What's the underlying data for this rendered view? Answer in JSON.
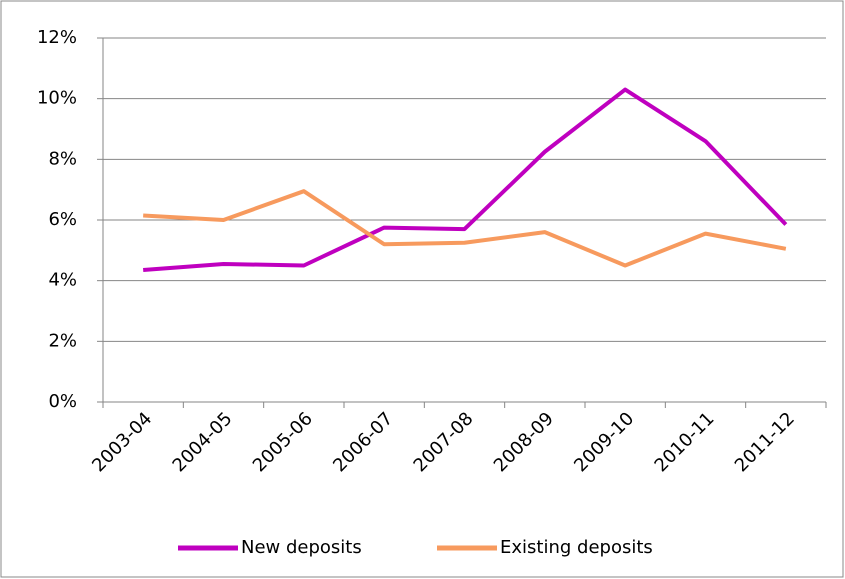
{
  "chart_data": {
    "type": "line",
    "categories": [
      "2003-04",
      "2004-05",
      "2005-06",
      "2006-07",
      "2007-08",
      "2008-09",
      "2009-10",
      "2010-11",
      "2011-12"
    ],
    "series": [
      {
        "name": "New deposits",
        "color": "#bf00bf",
        "values": [
          4.35,
          4.55,
          4.5,
          5.75,
          5.7,
          8.25,
          10.3,
          8.6,
          5.85
        ]
      },
      {
        "name": "Existing deposits",
        "color": "#f79a5e",
        "values": [
          6.15,
          6.0,
          6.95,
          5.2,
          5.25,
          5.6,
          4.5,
          5.55,
          5.05
        ]
      }
    ],
    "ylim": [
      0,
      12
    ],
    "yticks": [
      {
        "value": 0,
        "label": "0%"
      },
      {
        "value": 2,
        "label": "2%"
      },
      {
        "value": 4,
        "label": "4%"
      },
      {
        "value": 6,
        "label": "6%"
      },
      {
        "value": 8,
        "label": "8%"
      },
      {
        "value": 10,
        "label": "10%"
      },
      {
        "value": 12,
        "label": "12%"
      }
    ],
    "grid": true,
    "legend": "bottom"
  }
}
